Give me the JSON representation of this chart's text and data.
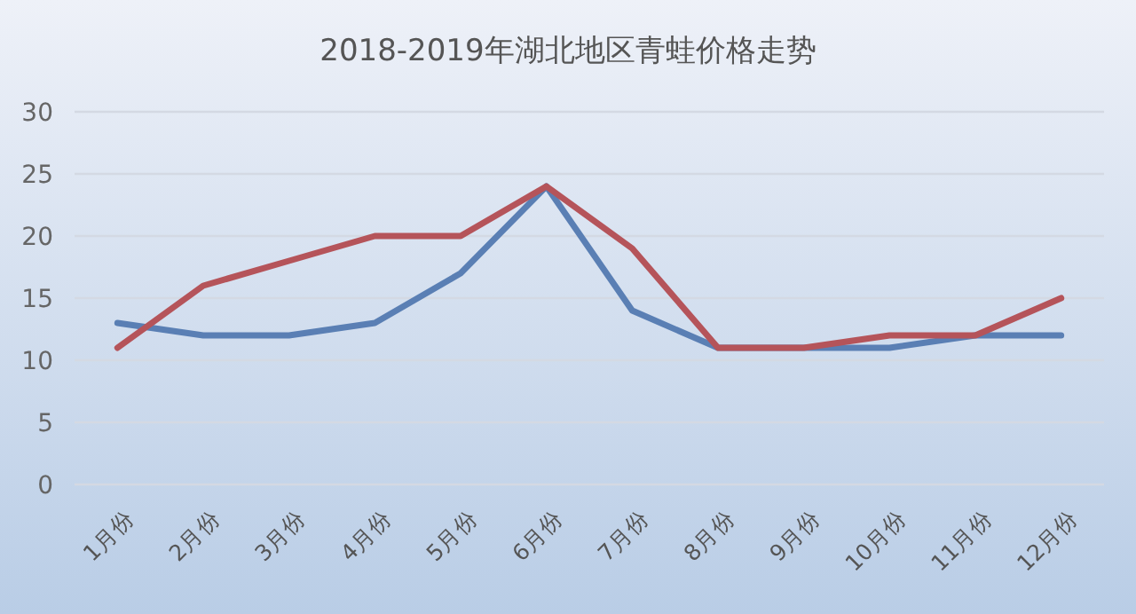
{
  "chart_data": {
    "type": "line",
    "title": "2018-2019年湖北地区青蛙价格走势",
    "categories": [
      "1月份",
      "2月份",
      "3月份",
      "4月份",
      "5月份",
      "6月份",
      "7月份",
      "8月份",
      "9月份",
      "10月份",
      "11月份",
      "12月份"
    ],
    "series": [
      {
        "color": "#5a7fb4",
        "values": [
          13,
          12,
          12,
          13,
          17,
          24,
          14,
          11,
          11,
          11,
          12,
          12
        ]
      },
      {
        "color": "#b5545a",
        "values": [
          11,
          16,
          18,
          20,
          20,
          24,
          19,
          11,
          11,
          12,
          12,
          15
        ]
      }
    ],
    "ylim": [
      0,
      30
    ],
    "yticks": [
      0,
      5,
      10,
      15,
      20,
      25,
      30
    ],
    "grid": "y",
    "marker": "none",
    "line_style": "solid"
  }
}
